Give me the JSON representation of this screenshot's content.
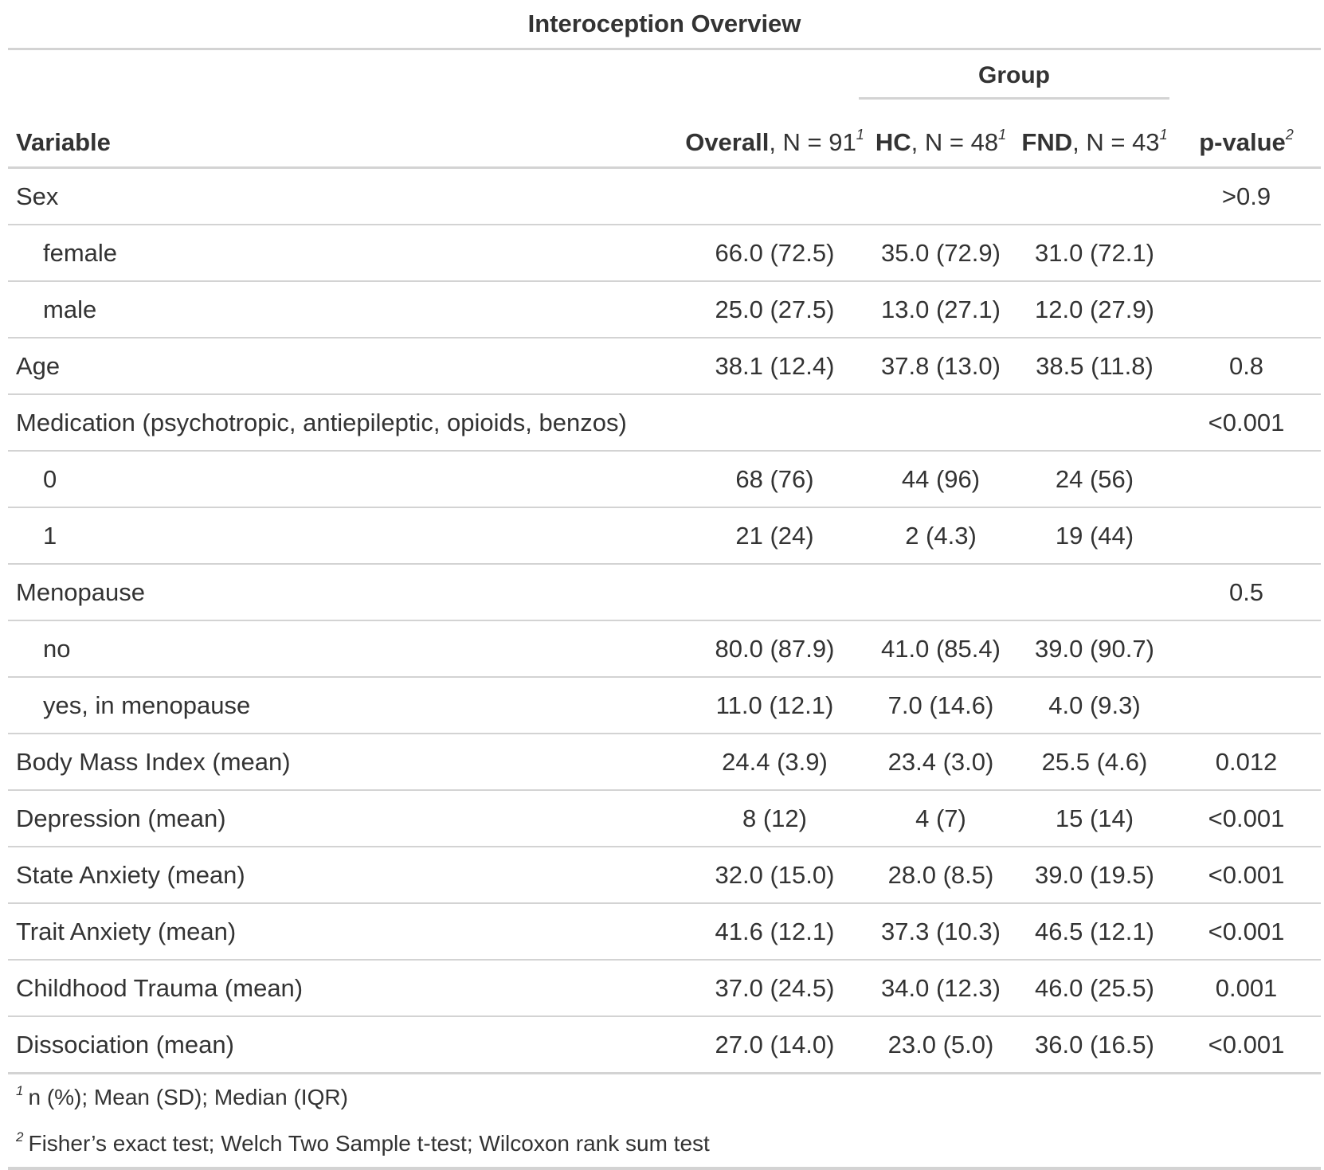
{
  "title": "Interoception Overview",
  "spanner": "Group",
  "header": {
    "variable": "Variable",
    "overall_bold": "Overall",
    "overall_rest": ", N = 91",
    "overall_note": "1",
    "hc_bold": "HC",
    "hc_rest": ", N = 48",
    "hc_note": "1",
    "fnd_bold": "FND",
    "fnd_rest": ", N = 43",
    "fnd_note": "1",
    "p_bold": "p-value",
    "p_note": "2"
  },
  "rows": [
    {
      "label": "Sex",
      "indent": false,
      "overall": "",
      "hc": "",
      "fnd": "",
      "p": ">0.9"
    },
    {
      "label": "female",
      "indent": true,
      "overall": "66.0 (72.5)",
      "hc": "35.0 (72.9)",
      "fnd": "31.0 (72.1)",
      "p": ""
    },
    {
      "label": "male",
      "indent": true,
      "overall": "25.0 (27.5)",
      "hc": "13.0 (27.1)",
      "fnd": "12.0 (27.9)",
      "p": ""
    },
    {
      "label": "Age",
      "indent": false,
      "overall": "38.1 (12.4)",
      "hc": "37.8 (13.0)",
      "fnd": "38.5 (11.8)",
      "p": "0.8"
    },
    {
      "label": "Medication (psychotropic, antiepileptic, opioids, benzos)",
      "indent": false,
      "overall": "",
      "hc": "",
      "fnd": "",
      "p": "<0.001"
    },
    {
      "label": "0",
      "indent": true,
      "overall": "68 (76)",
      "hc": "44 (96)",
      "fnd": "24 (56)",
      "p": ""
    },
    {
      "label": "1",
      "indent": true,
      "overall": "21 (24)",
      "hc": "2 (4.3)",
      "fnd": "19 (44)",
      "p": ""
    },
    {
      "label": "Menopause",
      "indent": false,
      "overall": "",
      "hc": "",
      "fnd": "",
      "p": "0.5"
    },
    {
      "label": "no",
      "indent": true,
      "overall": "80.0 (87.9)",
      "hc": "41.0 (85.4)",
      "fnd": "39.0 (90.7)",
      "p": ""
    },
    {
      "label": "yes, in menopause",
      "indent": true,
      "overall": "11.0 (12.1)",
      "hc": "7.0 (14.6)",
      "fnd": "4.0 (9.3)",
      "p": ""
    },
    {
      "label": "Body Mass Index (mean)",
      "indent": false,
      "overall": "24.4 (3.9)",
      "hc": "23.4 (3.0)",
      "fnd": "25.5 (4.6)",
      "p": "0.012"
    },
    {
      "label": "Depression (mean)",
      "indent": false,
      "overall": "8 (12)",
      "hc": "4 (7)",
      "fnd": "15 (14)",
      "p": "<0.001"
    },
    {
      "label": "State Anxiety (mean)",
      "indent": false,
      "overall": "32.0 (15.0)",
      "hc": "28.0 (8.5)",
      "fnd": "39.0 (19.5)",
      "p": "<0.001"
    },
    {
      "label": "Trait Anxiety (mean)",
      "indent": false,
      "overall": "41.6 (12.1)",
      "hc": "37.3 (10.3)",
      "fnd": "46.5 (12.1)",
      "p": "<0.001"
    },
    {
      "label": "Childhood Trauma (mean)",
      "indent": false,
      "overall": "37.0 (24.5)",
      "hc": "34.0 (12.3)",
      "fnd": "46.0 (25.5)",
      "p": "0.001"
    },
    {
      "label": "Dissociation (mean)",
      "indent": false,
      "overall": "27.0 (14.0)",
      "hc": "23.0 (5.0)",
      "fnd": "36.0 (16.5)",
      "p": "<0.001"
    }
  ],
  "footnotes": [
    {
      "mark": "1",
      "text": "n (%); Mean (SD); Median (IQR)"
    },
    {
      "mark": "2",
      "text": "Fisher’s exact test; Welch Two Sample t-test; Wilcoxon rank sum test"
    }
  ]
}
